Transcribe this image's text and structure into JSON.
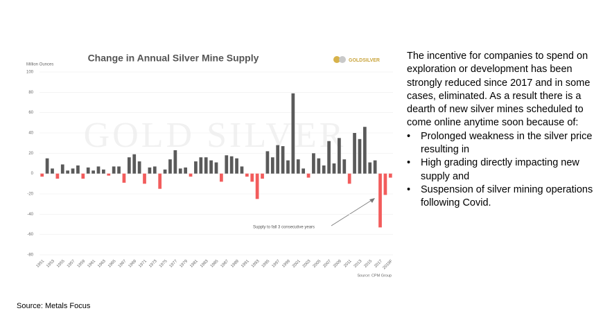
{
  "chart_data": {
    "type": "bar",
    "title": "Change in Annual Silver Mine Supply",
    "y_label": "Million Ounces",
    "logo": "GOLDSILVER",
    "watermark": "GOLD SILVER",
    "annotation": "Supply to fall 3 consecutive years",
    "source": "Source: CPM Group",
    "categories": [
      "1951",
      null,
      "1953",
      null,
      "1955",
      null,
      "1957",
      null,
      "1959",
      null,
      "1961",
      null,
      "1963",
      null,
      "1965",
      null,
      "1967",
      null,
      "1969",
      null,
      "1971",
      null,
      "1973",
      null,
      "1975",
      null,
      "1977",
      null,
      "1979",
      null,
      "1981",
      null,
      "1983",
      null,
      "1985",
      null,
      "1987",
      null,
      "1989",
      null,
      "1991",
      null,
      "1993",
      null,
      "1995",
      null,
      "1997",
      null,
      "1999",
      null,
      "2001",
      null,
      "2003",
      null,
      "2005",
      null,
      "2007",
      null,
      "2009",
      null,
      "2011",
      null,
      "2013",
      null,
      "2015",
      null,
      "2017",
      null,
      "2019F"
    ],
    "values": [
      -3,
      15,
      5,
      -5,
      9,
      3,
      5,
      8,
      -5,
      6,
      3,
      7,
      4,
      -2,
      7,
      7,
      -9,
      16,
      19,
      12,
      -10,
      6,
      7,
      -15,
      4,
      14,
      23,
      5,
      6,
      -3,
      12,
      16,
      16,
      13,
      11,
      -8,
      18,
      17,
      15,
      7,
      -3,
      -8,
      -25,
      -5,
      22,
      16,
      28,
      27,
      13,
      79,
      14,
      5,
      -4,
      20,
      15,
      8,
      32,
      10,
      35,
      14,
      -10,
      40,
      34,
      46,
      11,
      13,
      -53,
      -21,
      -4
    ],
    "positive_color": "#5a5a5a",
    "negative_color": "#f25c5c",
    "ylim": [
      -80,
      100
    ],
    "yticks": [
      -80,
      -60,
      -40,
      -20,
      0,
      20,
      40,
      60,
      80,
      100
    ],
    "grid": true
  },
  "text": {
    "paragraph": "The incentive for companies to spend on exploration or development has been strongly reduced since 2017 and in some cases, eliminated. As a result there is a dearth of new silver mines scheduled to come online anytime soon because of:",
    "bullets": [
      "Prolonged weakness in the silver price resulting in",
      "High grading directly impacting new supply and",
      "Suspension of silver mining operations following Covid."
    ]
  },
  "footer": "Source: Metals Focus"
}
